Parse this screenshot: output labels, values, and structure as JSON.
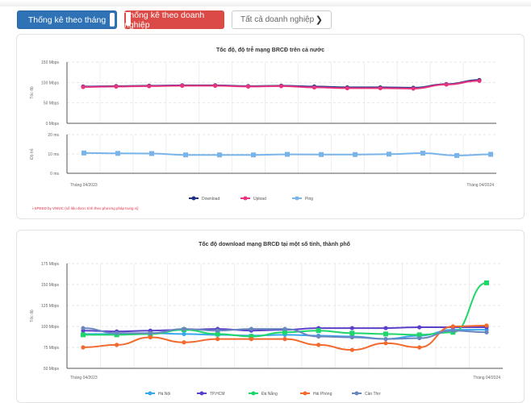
{
  "controls": {
    "monthly_label": "Thống kê theo tháng",
    "enterprise_label": "Thống kê theo doanh nghiệp",
    "enterprise_select": "Tất cả doanh nghiệp",
    "select_icon": "chevron-down-icon"
  },
  "chart_data": [
    {
      "type": "line",
      "title": "Tốc độ, độ trễ mạng BRCĐ trên cả nước",
      "x_first_label": "Tháng 04/2023",
      "x_last_label": "Tháng 04/2024",
      "speed_panel": {
        "ylabel": "Tốc độ",
        "yticks": [
          "150 Mbps",
          "100 Mbps",
          "50 Mbps",
          "0 Mbps"
        ],
        "ylim": [
          0,
          150
        ],
        "series": [
          {
            "name": "Download",
            "color": "#1f2f8a",
            "values": [
              90,
              91,
              92,
              93,
              93,
              91,
              92,
              90,
              88,
              88,
              87,
              96,
              106
            ]
          },
          {
            "name": "Upload",
            "color": "#e8347f",
            "values": [
              89,
              90,
              91,
              92,
              92,
              90,
              91,
              88,
              86,
              86,
              85,
              95,
              104
            ]
          }
        ]
      },
      "ping_panel": {
        "ylabel": "Độ trễ",
        "yticks": [
          "20 ms",
          "10 ms",
          "0 ms"
        ],
        "ylim": [
          0,
          20
        ],
        "series": [
          {
            "name": "Ping",
            "color": "#78b4ea",
            "values": [
              10.5,
              10.3,
              10.2,
              9.5,
              9.5,
              9.5,
              9.8,
              9.7,
              9.7,
              9.9,
              10.4,
              9.2,
              9.8
            ]
          }
        ]
      },
      "legend": [
        "Download",
        "Upload",
        "Ping"
      ],
      "legend_position": "bottom",
      "grid": true,
      "note": "i-SPEED by VNNIC (số liệu được tính theo phương pháp trung vị)"
    },
    {
      "type": "line",
      "title": "Tốc độ download mạng BRCĐ tại một số tỉnh, thành phố",
      "ylabel": "Tốc độ",
      "yticks": [
        "175 Mbps",
        "150 Mbps",
        "125 Mbps",
        "100 Mbps",
        "75 Mbps",
        "50 Mbps"
      ],
      "ylim": [
        50,
        175
      ],
      "x_first_label": "Tháng 04/2023",
      "x_last_label": "Tháng 04/2024",
      "legend_position": "bottom",
      "grid": true,
      "series": [
        {
          "name": "Hà Nội",
          "color": "#3aa6ee",
          "values": [
            91,
            91,
            92,
            91,
            90,
            89,
            90,
            89,
            88,
            85,
            89,
            96,
            96
          ]
        },
        {
          "name": "TP.HCM",
          "color": "#5b40c9",
          "values": [
            95,
            94,
            95,
            96,
            97,
            95,
            96,
            98,
            98,
            98,
            99,
            99,
            99
          ]
        },
        {
          "name": "Đà Nẵng",
          "color": "#1fd66a",
          "values": [
            90,
            90,
            91,
            96,
            91,
            88,
            93,
            95,
            92,
            91,
            90,
            93,
            152
          ]
        },
        {
          "name": "Hải Phòng",
          "color": "#f26a2e",
          "values": [
            75,
            78,
            87,
            81,
            85,
            85,
            85,
            78,
            72,
            80,
            75,
            100,
            101
          ]
        },
        {
          "name": "Cần Thơ",
          "color": "#6a86c0",
          "values": [
            98,
            92,
            92,
            97,
            95,
            97,
            97,
            88,
            87,
            85,
            86,
            95,
            93
          ]
        }
      ]
    }
  ]
}
